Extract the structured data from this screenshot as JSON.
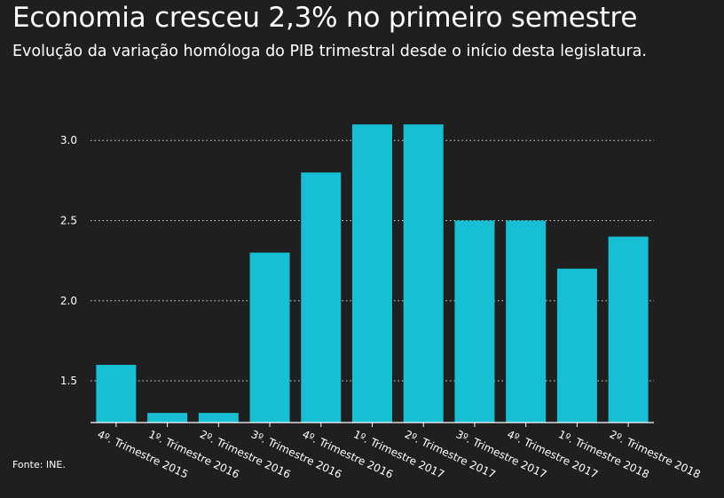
{
  "header": {
    "title": "Economia cresceu 2,3% no primeiro semestre",
    "subtitle": "Evolução da variação homóloga do PIB trimestral desde o início desta legislatura."
  },
  "footer": {
    "source": "Fonte: INE."
  },
  "colors": {
    "background": "#1f1f1f",
    "bar": "#16bfd3",
    "text": "#ffffff",
    "grid": "#ffffff"
  },
  "chart_data": {
    "type": "bar",
    "title": "Economia cresceu 2,3% no primeiro semestre",
    "subtitle": "Evolução da variação homóloga do PIB trimestral desde o início desta legislatura.",
    "xlabel": "",
    "ylabel": "",
    "categories": [
      "4º. Trimestre 2015",
      "1º. Trimestre 2016",
      "2º. Trimestre 2016",
      "3º. Trimestre 2016",
      "4º. Trimestre 2016",
      "1º. Trimestre 2017",
      "2º. Trimestre 2017",
      "3º. Trimestre 2017",
      "4º. Trimestre 2017",
      "1º. Trimestre 2018",
      "2º. Trimestre 2018"
    ],
    "values": [
      1.6,
      1.3,
      1.3,
      2.3,
      2.8,
      3.1,
      3.1,
      2.5,
      2.5,
      2.2,
      2.4
    ],
    "yticks": [
      "1.5",
      "2.0",
      "2.5",
      "3.0"
    ],
    "ylim": [
      1.24,
      3.35
    ],
    "grid": true,
    "grid_style": "dotted",
    "legend": "none"
  }
}
